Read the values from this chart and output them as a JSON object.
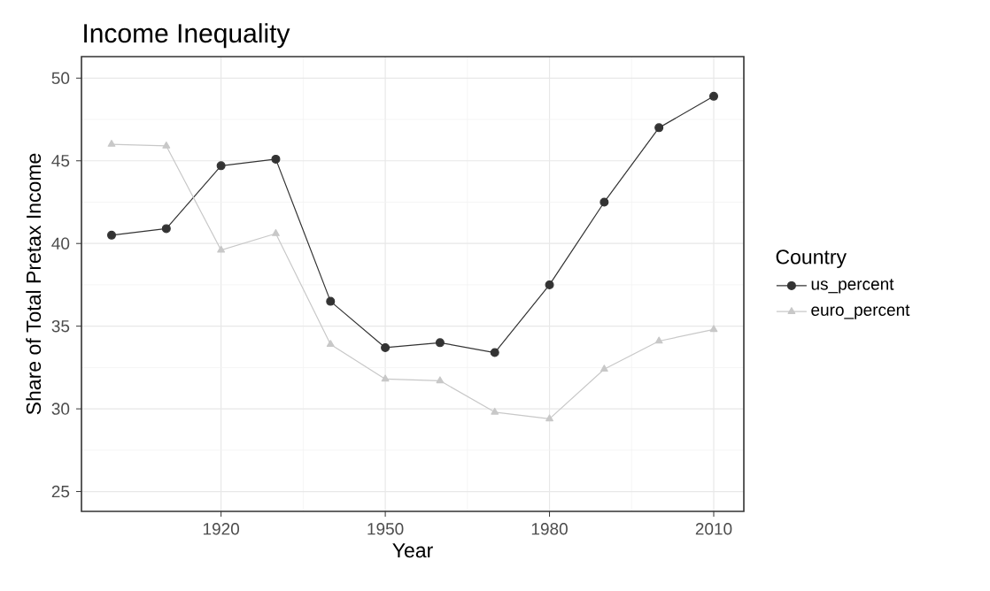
{
  "chart_data": {
    "type": "line",
    "title": "Income Inequality",
    "xlabel": "Year",
    "ylabel": "Share of Total Pretax Income",
    "legend_title": "Country",
    "x": [
      1900,
      1910,
      1920,
      1930,
      1940,
      1950,
      1960,
      1970,
      1980,
      1990,
      2000,
      2010
    ],
    "series": [
      {
        "name": "us_percent",
        "color": "#333333",
        "marker": "circle",
        "values": [
          40.5,
          40.9,
          44.7,
          45.1,
          36.5,
          33.7,
          34.0,
          33.4,
          37.5,
          42.5,
          47.0,
          48.9
        ]
      },
      {
        "name": "euro_percent",
        "color": "#c8c8c8",
        "marker": "triangle",
        "values": [
          46.0,
          45.9,
          39.6,
          40.6,
          33.9,
          31.8,
          31.7,
          29.8,
          29.4,
          32.4,
          34.1,
          34.8
        ]
      }
    ],
    "xlim": [
      1894.5,
      2015.5
    ],
    "xticks": [
      1920,
      1950,
      1980,
      2010
    ],
    "ylim": [
      23.8,
      51.3
    ],
    "yticks": [
      25,
      30,
      35,
      40,
      45,
      50
    ],
    "grid": true,
    "legend": "right",
    "line_style": "solid"
  }
}
